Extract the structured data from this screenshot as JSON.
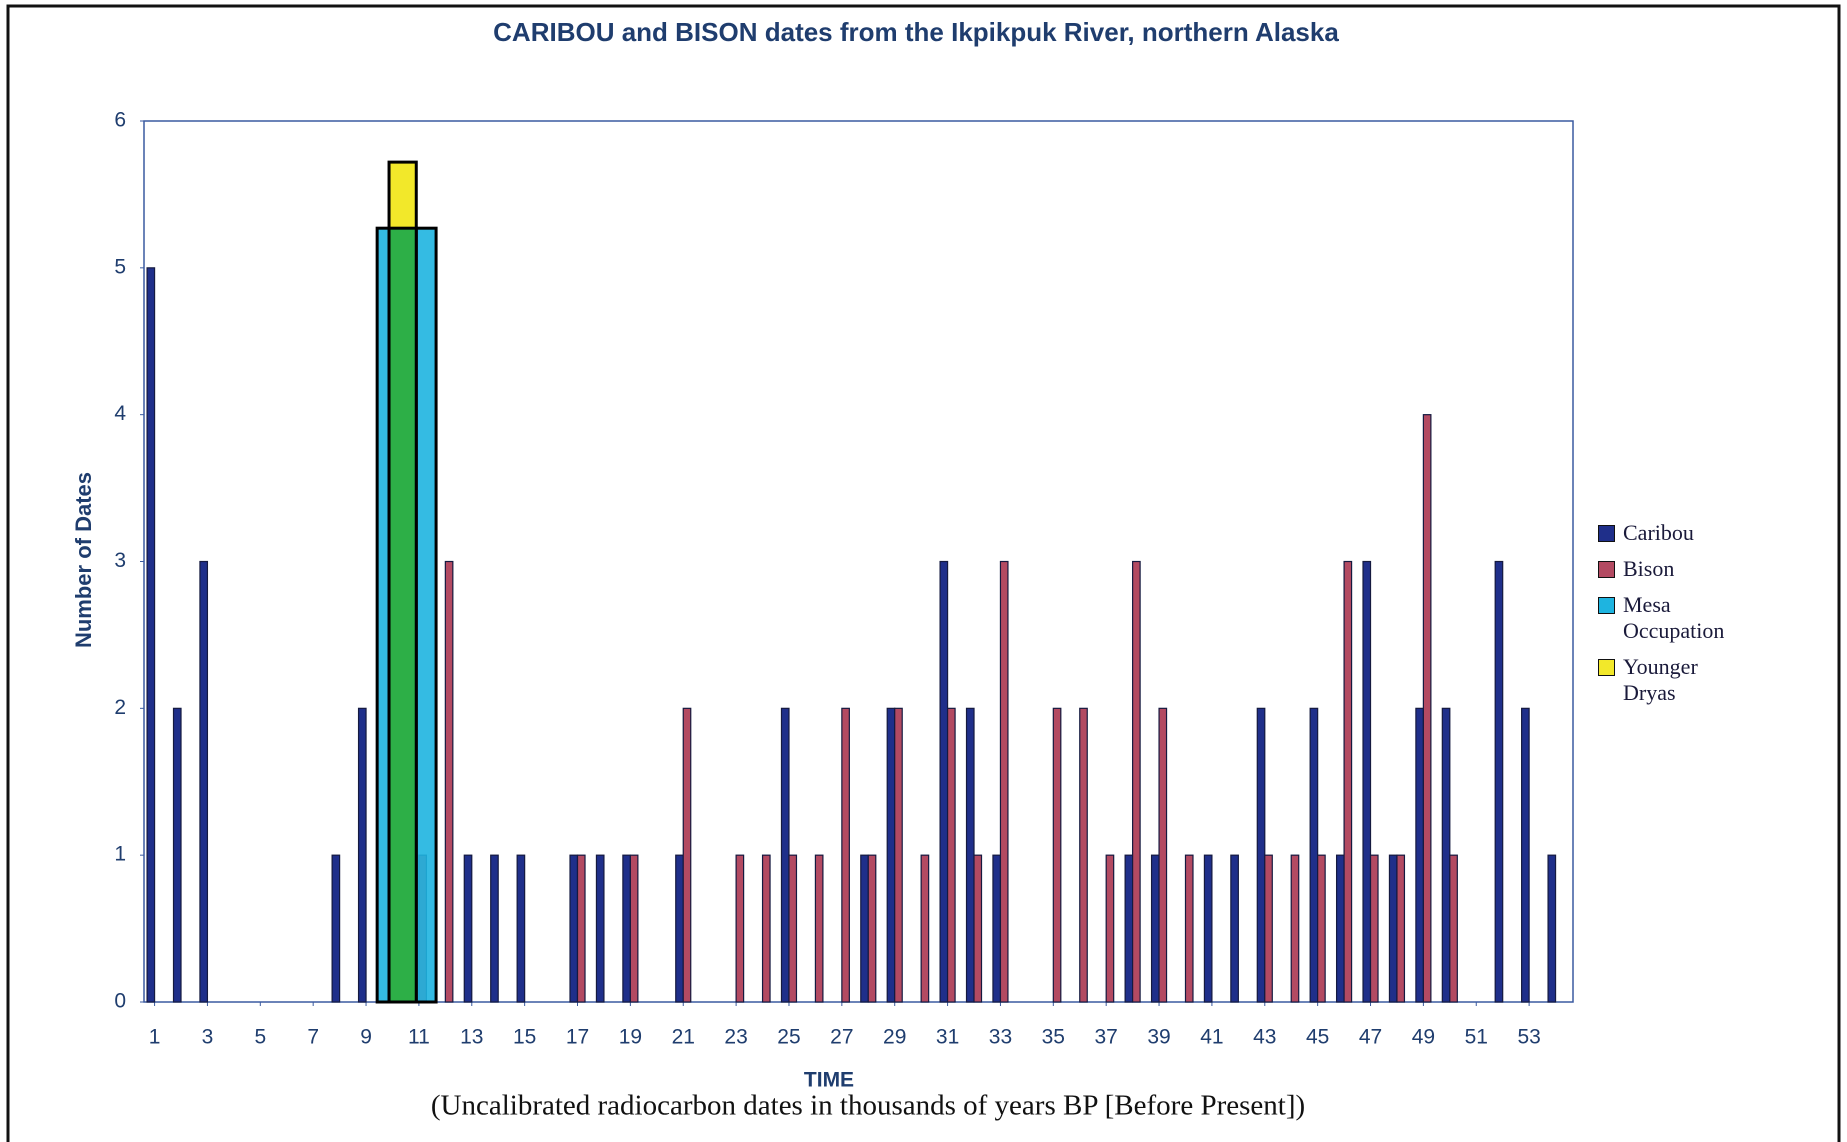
{
  "chart_data": {
    "type": "bar",
    "title": "CARIBOU and BISON dates from the Ikpikpuk River, northern Alaska",
    "y_label": "Number of Dates",
    "x_label": "TIME",
    "x_sublabel": "(Uncalibrated radiocarbon dates in thousands of years BP [Before Present])",
    "x": [
      1,
      2,
      3,
      4,
      5,
      6,
      7,
      8,
      9,
      10,
      11,
      12,
      13,
      14,
      15,
      16,
      17,
      18,
      19,
      20,
      21,
      22,
      23,
      24,
      25,
      26,
      27,
      28,
      29,
      30,
      31,
      32,
      33,
      34,
      35,
      36,
      37,
      38,
      39,
      40,
      41,
      42,
      43,
      44,
      45,
      46,
      47,
      48,
      49,
      50,
      51,
      52,
      53,
      54
    ],
    "xlim": [
      0.6,
      54.66
    ],
    "xticks": [
      1,
      3,
      5,
      7,
      9,
      11,
      13,
      15,
      17,
      19,
      21,
      23,
      25,
      27,
      29,
      31,
      33,
      35,
      37,
      39,
      41,
      43,
      45,
      47,
      49,
      51,
      53
    ],
    "ylim": [
      0,
      6
    ],
    "yticks": [
      0,
      1,
      2,
      3,
      4,
      5,
      6
    ],
    "series": [
      {
        "name": "Caribou",
        "color": "#1f2f8a",
        "values": [
          5,
          2,
          3,
          0,
          0,
          0,
          0,
          1,
          2,
          0,
          0,
          0,
          1,
          1,
          1,
          0,
          1,
          1,
          1,
          0,
          1,
          0,
          0,
          0,
          2,
          0,
          0,
          1,
          2,
          0,
          3,
          2,
          1,
          0,
          0,
          0,
          0,
          1,
          1,
          0,
          1,
          1,
          2,
          0,
          2,
          1,
          3,
          1,
          2,
          2,
          0,
          3,
          2,
          1
        ]
      },
      {
        "name": "Bison",
        "color": "#b34a62",
        "values": [
          0,
          0,
          0,
          0,
          0,
          0,
          0,
          0,
          0,
          2,
          1,
          3,
          0,
          0,
          0,
          0,
          1,
          0,
          1,
          0,
          2,
          0,
          1,
          1,
          1,
          1,
          2,
          1,
          2,
          1,
          2,
          1,
          3,
          0,
          2,
          2,
          1,
          3,
          2,
          1,
          0,
          0,
          1,
          1,
          1,
          3,
          1,
          1,
          4,
          1,
          0,
          0,
          0,
          0
        ]
      }
    ],
    "bands": [
      {
        "name": "Mesa Occupation",
        "color": "#1eb4e0",
        "x": [
          9.42,
          11.65
        ],
        "value": 5.27
      },
      {
        "name": "Younger Dryas",
        "color": "#f2e82a",
        "x": [
          9.87,
          10.9
        ],
        "value": 5.72
      }
    ]
  }
}
